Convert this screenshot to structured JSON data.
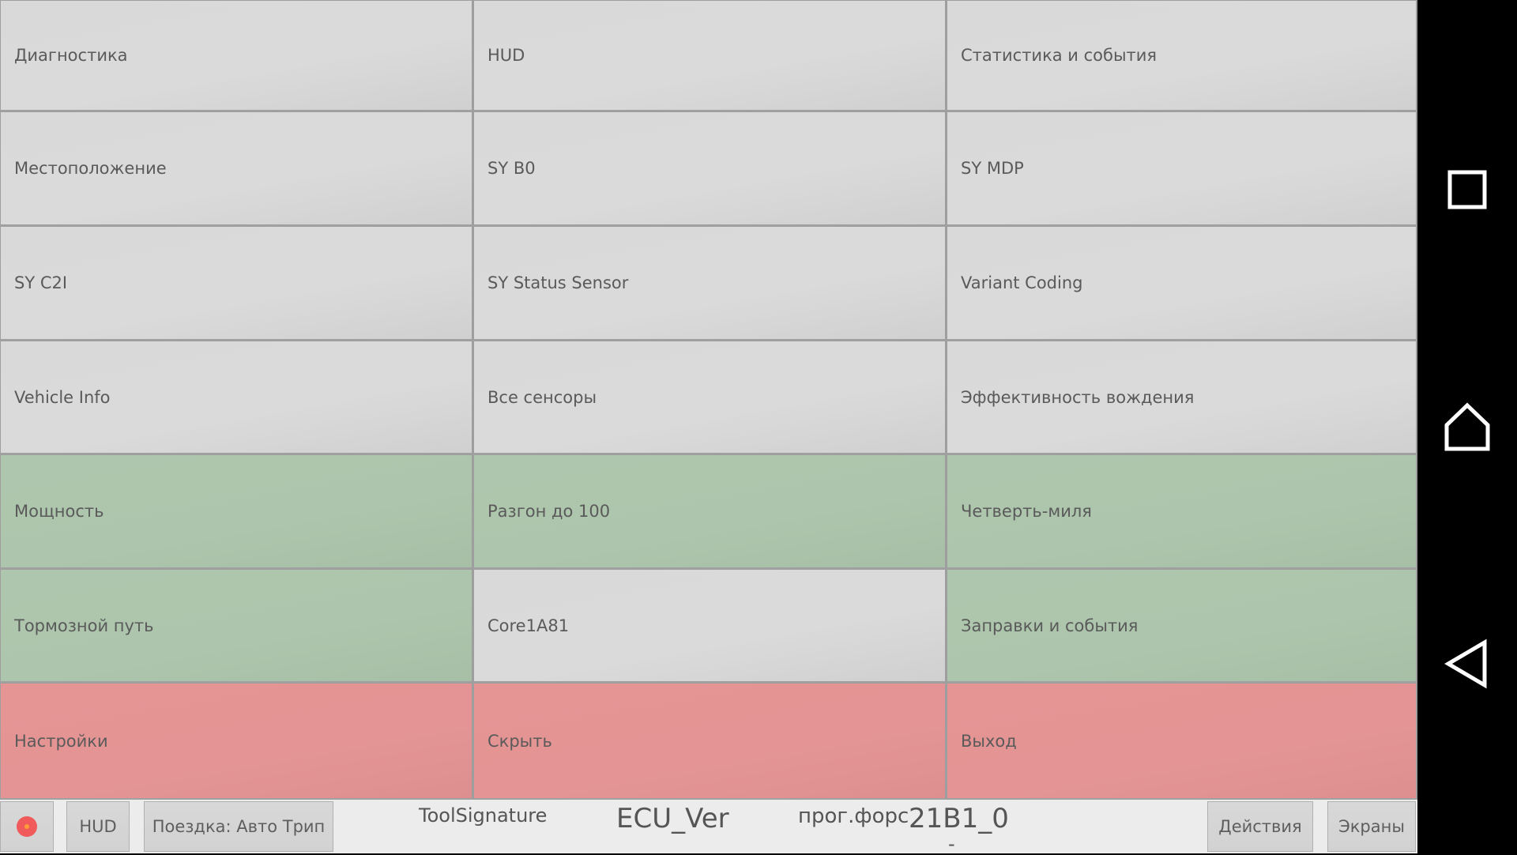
{
  "grid": [
    {
      "label": "Диагностика",
      "color": "gray"
    },
    {
      "label": "HUD",
      "color": "gray"
    },
    {
      "label": "Статистика и события",
      "color": "gray"
    },
    {
      "label": "Местоположение",
      "color": "gray"
    },
    {
      "label": "SY B0",
      "color": "gray"
    },
    {
      "label": "SY MDP",
      "color": "gray"
    },
    {
      "label": "SY C2I",
      "color": "gray"
    },
    {
      "label": "SY Status Sensor",
      "color": "gray"
    },
    {
      "label": "Variant Coding",
      "color": "gray"
    },
    {
      "label": "Vehicle Info",
      "color": "gray"
    },
    {
      "label": "Все сенсоры",
      "color": "gray"
    },
    {
      "label": "Эффективность вождения",
      "color": "gray"
    },
    {
      "label": "Мощность",
      "color": "green"
    },
    {
      "label": "Разгон до 100",
      "color": "green"
    },
    {
      "label": "Четверть-миля",
      "color": "green"
    },
    {
      "label": "Тормозной путь",
      "color": "green"
    },
    {
      "label": "Core1A81",
      "color": "gray"
    },
    {
      "label": "Заправки и события",
      "color": "green"
    },
    {
      "label": "Настройки",
      "color": "red"
    },
    {
      "label": "Скрыть",
      "color": "red"
    },
    {
      "label": "Выход",
      "color": "red"
    }
  ],
  "bottom_bar": {
    "record_icon": "record-icon",
    "hud_label": "HUD",
    "trip_label": "Поездка: Авто Трип",
    "tool_signature": "ToolSignature",
    "ecu_ver": "ECU_Ver",
    "prog_label": "прог.форс",
    "prog_value": "21B1_0",
    "prog_sub": "-",
    "actions_label": "Действия",
    "screens_label": "Экраны"
  },
  "nav_bar": {
    "recents_icon": "square-recents-icon",
    "home_icon": "home-icon",
    "back_icon": "back-triangle-icon"
  },
  "colors": {
    "gray": "#d9d9d9",
    "green": "#adc6ad",
    "red": "#e69595",
    "nav_background": "#000000"
  }
}
